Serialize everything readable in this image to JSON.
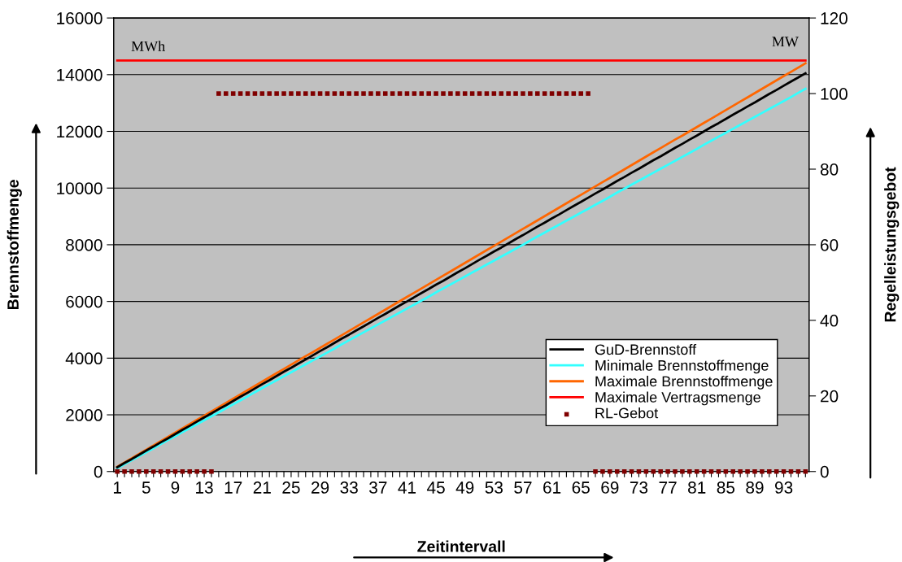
{
  "chart_data": {
    "type": "line",
    "categories": [
      "1",
      null,
      null,
      null,
      "5",
      null,
      null,
      null,
      "9",
      null,
      null,
      null,
      "13",
      null,
      null,
      null,
      "17",
      null,
      null,
      null,
      "21",
      null,
      null,
      null,
      "25",
      null,
      null,
      null,
      "29",
      null,
      null,
      null,
      "33",
      null,
      null,
      null,
      "37",
      null,
      null,
      null,
      "41",
      null,
      null,
      null,
      "45",
      null,
      null,
      null,
      "49",
      null,
      null,
      null,
      "53",
      null,
      null,
      null,
      "57",
      null,
      null,
      null,
      "61",
      null,
      null,
      null,
      "65",
      null,
      null,
      null,
      "69",
      null,
      null,
      null,
      "73",
      null,
      null,
      null,
      "77",
      null,
      null,
      null,
      "81",
      null,
      null,
      null,
      "85",
      null,
      null,
      null,
      "89",
      null,
      null,
      null,
      "93",
      null,
      null,
      null
    ],
    "series": [
      {
        "name": "GuD-Brennstoff",
        "color": "#000000",
        "values": [
          150,
          300,
          440,
          590,
          740,
          880,
          1030,
          1170,
          1320,
          1470,
          1610,
          1760,
          1910,
          2050,
          2200,
          2340,
          2490,
          2640,
          2780,
          2930,
          3080,
          3220,
          3370,
          3520,
          3660,
          3810,
          3950,
          4100,
          4250,
          4390,
          4540,
          4690,
          4830,
          4980,
          5120,
          5270,
          5420,
          5560,
          5710,
          5860,
          6000,
          6150,
          6300,
          6440,
          6590,
          6730,
          6880,
          7030,
          7170,
          7320,
          7470,
          7610,
          7760,
          7900,
          8050,
          8200,
          8340,
          8490,
          8640,
          8780,
          8930,
          9070,
          9220,
          9370,
          9510,
          9660,
          9810,
          9950,
          10100,
          10250,
          10390,
          10540,
          10680,
          10830,
          10980,
          11120,
          11270,
          11420,
          11560,
          11710,
          11850,
          12000,
          12150,
          12290,
          12440,
          12590,
          12730,
          12880,
          13020,
          13170,
          13320,
          13460,
          13610,
          13760,
          13900,
          14050
        ]
      },
      {
        "name": "Minimale Brennstoffmenge",
        "color": "#33ffff",
        "values": [
          120,
          260,
          400,
          540,
          680,
          820,
          970,
          1110,
          1250,
          1390,
          1530,
          1670,
          1810,
          1950,
          2090,
          2230,
          2370,
          2510,
          2650,
          2800,
          2940,
          3080,
          3220,
          3360,
          3500,
          3640,
          3780,
          3920,
          4060,
          4200,
          4340,
          4490,
          4630,
          4770,
          4910,
          5050,
          5190,
          5330,
          5470,
          5610,
          5750,
          5890,
          6030,
          6170,
          6320,
          6460,
          6600,
          6740,
          6880,
          7020,
          7160,
          7300,
          7440,
          7580,
          7720,
          7860,
          8000,
          8150,
          8290,
          8430,
          8570,
          8710,
          8850,
          8990,
          9130,
          9270,
          9410,
          9550,
          9690,
          9840,
          9980,
          10120,
          10260,
          10400,
          10540,
          10680,
          10820,
          10960,
          11100,
          11240,
          11380,
          11530,
          11670,
          11810,
          11950,
          12090,
          12230,
          12370,
          12510,
          12650,
          12790,
          12930,
          13070,
          13210,
          13360,
          13500
        ]
      },
      {
        "name": "Maximale Brennstoffmenge",
        "color": "#ff6600",
        "values": [
          170,
          320,
          470,
          620,
          770,
          920,
          1070,
          1220,
          1370,
          1520,
          1670,
          1820,
          1970,
          2120,
          2270,
          2420,
          2570,
          2720,
          2870,
          3020,
          3170,
          3320,
          3470,
          3620,
          3770,
          3920,
          4070,
          4210,
          4360,
          4510,
          4660,
          4810,
          4960,
          5110,
          5260,
          5410,
          5560,
          5710,
          5860,
          6010,
          6160,
          6310,
          6460,
          6610,
          6760,
          6910,
          7060,
          7210,
          7360,
          7510,
          7660,
          7810,
          7960,
          8110,
          8260,
          8410,
          8560,
          8710,
          8860,
          9010,
          9160,
          9310,
          9460,
          9610,
          9760,
          9910,
          10060,
          10210,
          10360,
          10510,
          10660,
          10810,
          10960,
          11110,
          11260,
          11410,
          11560,
          11710,
          11850,
          12000,
          12150,
          12300,
          12450,
          12600,
          12750,
          12900,
          13050,
          13200,
          13350,
          13500,
          13650,
          13800,
          13950,
          14100,
          14250,
          14400
        ]
      },
      {
        "name": "Maximale Vertragsmenge",
        "color": "#ff0000",
        "values": [
          14500,
          14500,
          14500,
          14500,
          14500,
          14500,
          14500,
          14500,
          14500,
          14500,
          14500,
          14500,
          14500,
          14500,
          14500,
          14500,
          14500,
          14500,
          14500,
          14500,
          14500,
          14500,
          14500,
          14500,
          14500,
          14500,
          14500,
          14500,
          14500,
          14500,
          14500,
          14500,
          14500,
          14500,
          14500,
          14500,
          14500,
          14500,
          14500,
          14500,
          14500,
          14500,
          14500,
          14500,
          14500,
          14500,
          14500,
          14500,
          14500,
          14500,
          14500,
          14500,
          14500,
          14500,
          14500,
          14500,
          14500,
          14500,
          14500,
          14500,
          14500,
          14500,
          14500,
          14500,
          14500,
          14500,
          14500,
          14500,
          14500,
          14500,
          14500,
          14500,
          14500,
          14500,
          14500,
          14500,
          14500,
          14500,
          14500,
          14500,
          14500,
          14500,
          14500,
          14500,
          14500,
          14500,
          14500,
          14500,
          14500,
          14500,
          14500,
          14500,
          14500,
          14500,
          14500,
          14500
        ]
      },
      {
        "name": "RL-Gebot",
        "type": "scatter",
        "marker": "square",
        "axis": "y2",
        "color": "#800000",
        "values": [
          0,
          0,
          0,
          0,
          0,
          0,
          0,
          0,
          0,
          0,
          0,
          0,
          0,
          0,
          100,
          100,
          100,
          100,
          100,
          100,
          100,
          100,
          100,
          100,
          100,
          100,
          100,
          100,
          100,
          100,
          100,
          100,
          100,
          100,
          100,
          100,
          100,
          100,
          100,
          100,
          100,
          100,
          100,
          100,
          100,
          100,
          100,
          100,
          100,
          100,
          100,
          100,
          100,
          100,
          100,
          100,
          100,
          100,
          100,
          100,
          100,
          100,
          100,
          100,
          100,
          100,
          0,
          0,
          0,
          0,
          0,
          0,
          0,
          0,
          0,
          0,
          0,
          0,
          0,
          0,
          0,
          0,
          0,
          0,
          0,
          0,
          0,
          0,
          0,
          0,
          0,
          0,
          0,
          0,
          0,
          0
        ]
      }
    ],
    "xlabel": "Zeitintervall",
    "ylabel": "Brennstoffmenge",
    "y2label": "Regelleistungsgebot",
    "ylim": [
      0,
      16000
    ],
    "yticks": [
      0,
      2000,
      4000,
      6000,
      8000,
      10000,
      12000,
      14000,
      16000
    ],
    "y2lim": [
      0,
      120
    ],
    "y2ticks": [
      0,
      20,
      40,
      60,
      80,
      100,
      120
    ],
    "annotations": [
      "MWh",
      "MW"
    ],
    "grid": "y",
    "legend": "lower right",
    "marker": "none",
    "line_style": "solid"
  }
}
